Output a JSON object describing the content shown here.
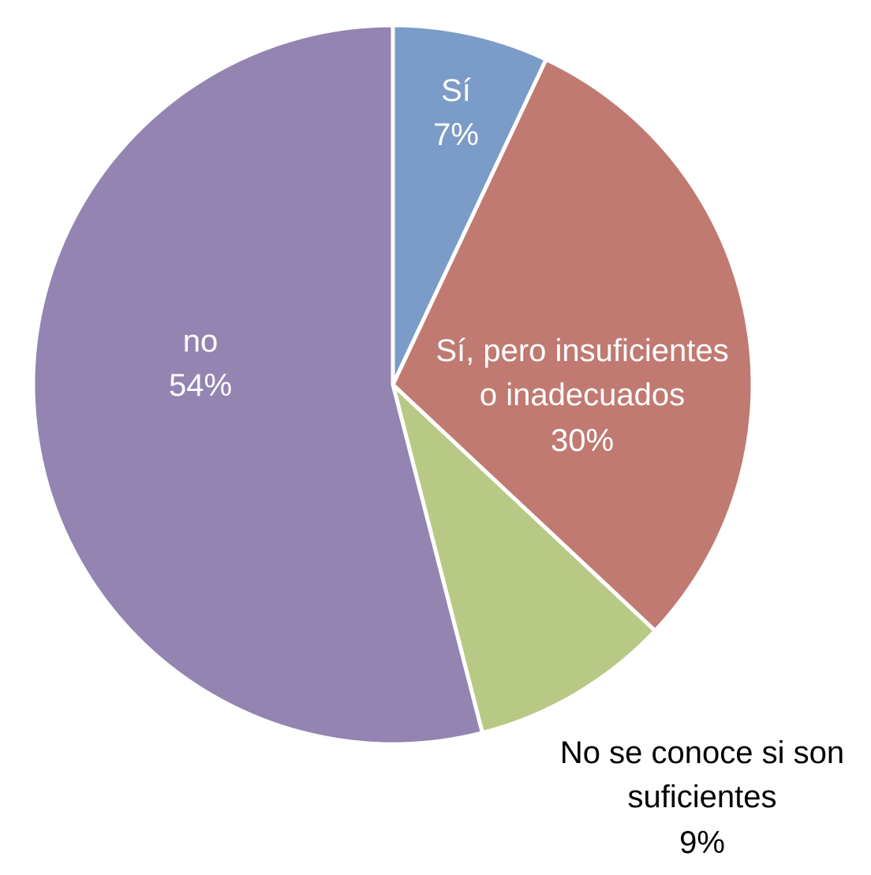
{
  "chart_data": {
    "type": "pie",
    "slices": [
      {
        "label": "Sí",
        "value": 7,
        "value_label": "7%",
        "color": "#7b9bc8",
        "label_placement": "inside"
      },
      {
        "label": "Sí, pero insuficientes o inadecuados",
        "value": 30,
        "value_label": "30%",
        "color": "#c07a72",
        "label_placement": "inside"
      },
      {
        "label": "No se conoce si son suficientes",
        "value": 9,
        "value_label": "9%",
        "color": "#b8c985",
        "label_placement": "outside"
      },
      {
        "label": "no",
        "value": 54,
        "value_label": "54%",
        "color": "#9484b1",
        "label_placement": "inside"
      }
    ],
    "start_angle": "12 o'clock",
    "direction": "clockwise",
    "legend": "none",
    "slice_border_color": "#ffffff"
  }
}
